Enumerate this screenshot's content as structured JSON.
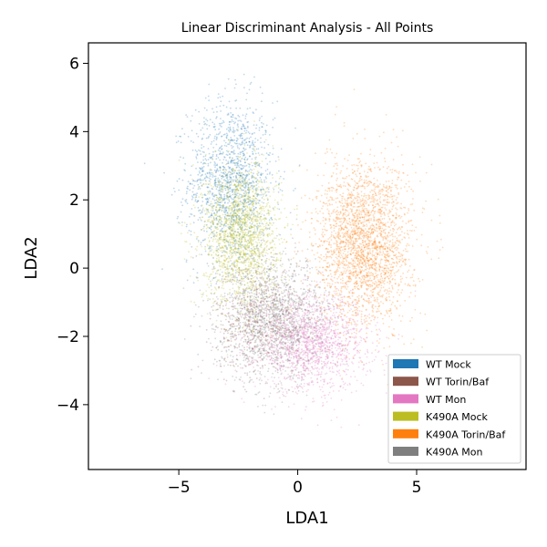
{
  "chart_data": {
    "type": "scatter",
    "title": "Linear Discriminant Analysis - All Points",
    "xlabel": "LDA1",
    "ylabel": "LDA2",
    "xlim": [
      -8.8,
      9.6
    ],
    "ylim": [
      -5.9,
      6.6
    ],
    "xticks": [
      -5,
      0,
      5
    ],
    "yticks": [
      -4,
      -2,
      0,
      2,
      4,
      6
    ],
    "tick_labels": {
      "x": [
        "−5",
        "0",
        "5"
      ],
      "y": [
        "−4",
        "−2",
        "0",
        "2",
        "4",
        "6"
      ]
    },
    "grid": false,
    "legend_position": "lower-right",
    "series": [
      {
        "name": "WT Mock",
        "color": "#1f77b4",
        "center": [
          -2.8,
          2.5
        ],
        "spread": [
          0.9,
          1.2
        ],
        "n": 1500
      },
      {
        "name": "WT Torin/Baf",
        "color": "#8c564b",
        "center": [
          -1.5,
          -1.5
        ],
        "spread": [
          1.0,
          0.8
        ],
        "n": 700
      },
      {
        "name": "WT Mon",
        "color": "#e377c2",
        "center": [
          0.6,
          -2.2
        ],
        "spread": [
          1.2,
          0.7
        ],
        "n": 1500
      },
      {
        "name": "K490A Mock",
        "color": "#bcbd22",
        "center": [
          -2.4,
          1.0
        ],
        "spread": [
          0.8,
          1.0
        ],
        "n": 1800
      },
      {
        "name": "K490A Torin/Baf",
        "color": "#ff7f0e",
        "center": [
          2.8,
          0.7
        ],
        "spread": [
          1.0,
          1.2
        ],
        "n": 2500
      },
      {
        "name": "K490A Mon",
        "color": "#7f7f7f",
        "center": [
          -1.0,
          -1.5
        ],
        "spread": [
          1.2,
          0.9
        ],
        "n": 1500
      }
    ]
  }
}
